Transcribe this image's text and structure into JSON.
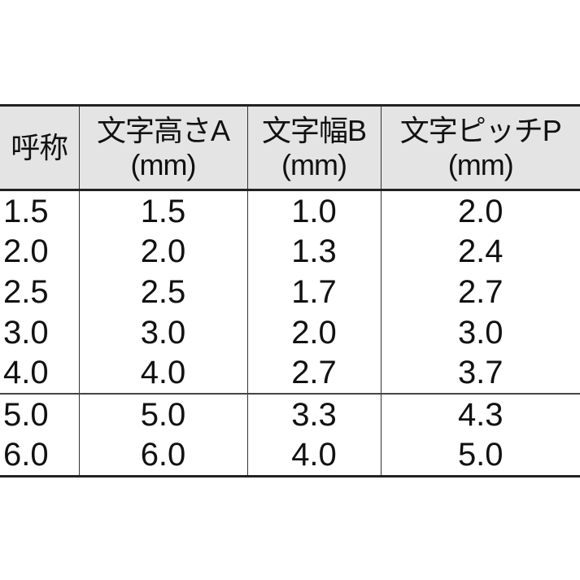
{
  "table": {
    "headers": [
      {
        "line1": "呼称",
        "line2": ""
      },
      {
        "line1": "文字高さA",
        "line2": "(mm)"
      },
      {
        "line1": "文字幅B",
        "line2": "(mm)"
      },
      {
        "line1": "文字ピッチP",
        "line2": "(mm)"
      }
    ],
    "rows": [
      [
        "1.5",
        "1.5",
        "1.0",
        "2.0"
      ],
      [
        "2.0",
        "2.0",
        "1.3",
        "2.4"
      ],
      [
        "2.5",
        "2.5",
        "1.7",
        "2.7"
      ],
      [
        "3.0",
        "3.0",
        "2.0",
        "3.0"
      ],
      [
        "4.0",
        "4.0",
        "2.7",
        "3.7"
      ],
      [
        "5.0",
        "5.0",
        "3.3",
        "4.3"
      ],
      [
        "6.0",
        "6.0",
        "4.0",
        "5.0"
      ]
    ],
    "header_background": "#e4e4e4"
  }
}
